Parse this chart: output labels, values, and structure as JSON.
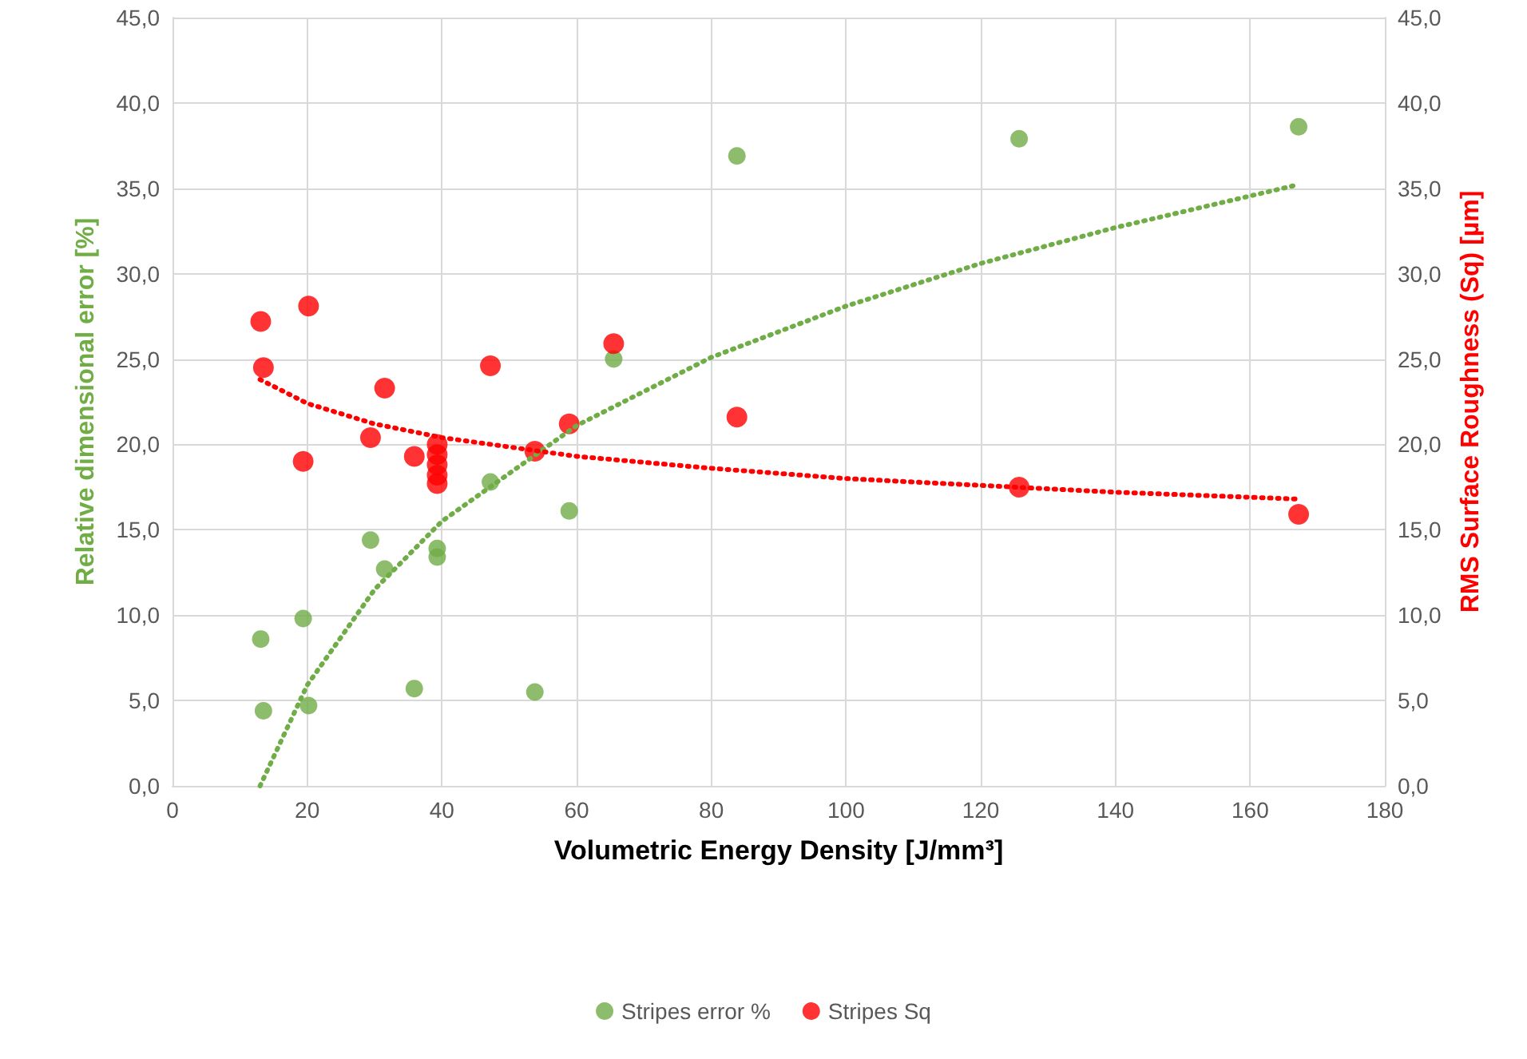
{
  "chart_data": {
    "type": "scatter",
    "xlabel": "Volumetric Energy Density [J/mm³]",
    "ylabel": "Relative dimensional error [%]",
    "y2label": "RMS Surface Roughness (Sq) [µm]",
    "xlim": [
      0,
      180
    ],
    "xticks": [
      0,
      20,
      40,
      60,
      80,
      100,
      120,
      140,
      160,
      180
    ],
    "ylim": [
      0,
      45
    ],
    "yticks": [
      {
        "value": 0,
        "label": "0,0"
      },
      {
        "value": 5,
        "label": "5,0"
      },
      {
        "value": 10,
        "label": "10,0"
      },
      {
        "value": 15,
        "label": "15,0"
      },
      {
        "value": 20,
        "label": "20,0"
      },
      {
        "value": 25,
        "label": "25,0"
      },
      {
        "value": 30,
        "label": "30,0"
      },
      {
        "value": 35,
        "label": "35,0"
      },
      {
        "value": 40,
        "label": "40,0"
      },
      {
        "value": 45,
        "label": "45,0"
      }
    ],
    "y2lim": [
      0,
      45
    ],
    "y2ticks": [
      {
        "value": 0,
        "label": "0,0"
      },
      {
        "value": 5,
        "label": "5,0"
      },
      {
        "value": 10,
        "label": "10,0"
      },
      {
        "value": 15,
        "label": "15,0"
      },
      {
        "value": 20,
        "label": "20,0"
      },
      {
        "value": 25,
        "label": "25,0"
      },
      {
        "value": 30,
        "label": "30,0"
      },
      {
        "value": 35,
        "label": "35,0"
      },
      {
        "value": 40,
        "label": "40,0"
      },
      {
        "value": 45,
        "label": "45,0"
      }
    ],
    "grid": true,
    "legend": "bottom",
    "marker": "circle",
    "series": [
      {
        "name": "Stripes error %",
        "color": "#70ad47",
        "x": [
          13.1,
          13.5,
          19.4,
          20.2,
          29.4,
          31.5,
          35.9,
          39.3,
          39.3,
          47.2,
          53.8,
          58.9,
          65.5,
          83.8,
          125.7,
          167.2
        ],
        "values": [
          8.6,
          4.4,
          9.8,
          4.7,
          14.4,
          12.7,
          5.7,
          13.9,
          13.4,
          17.8,
          5.5,
          16.1,
          25.0,
          36.9,
          37.9,
          38.6
        ]
      },
      {
        "name": "Stripes Sq",
        "color": "#ff0000",
        "axis": "y2",
        "x": [
          13.1,
          20.2,
          13.5,
          19.4,
          31.5,
          29.4,
          35.9,
          39.3,
          39.3,
          39.3,
          39.3,
          39.3,
          47.2,
          53.8,
          58.9,
          65.5,
          83.8,
          125.7,
          167.2
        ],
        "values": [
          27.2,
          28.1,
          24.5,
          19.0,
          23.3,
          20.4,
          19.3,
          20.0,
          19.4,
          18.8,
          18.2,
          17.7,
          24.6,
          19.6,
          21.2,
          25.9,
          21.6,
          17.5,
          15.9
        ]
      },
      {
        "type": "line",
        "color": "#70ad47",
        "marker": "none",
        "line_style": "dotted",
        "x": [
          13,
          20,
          30,
          40,
          60,
          80,
          100,
          120,
          140,
          167
        ],
        "values": [
          0,
          5.9,
          11.5,
          15.5,
          21.1,
          25.1,
          28.1,
          30.6,
          32.7,
          35.2
        ]
      },
      {
        "type": "line",
        "color": "#ff0000",
        "axis": "y2",
        "marker": "none",
        "line_style": "dotted",
        "x": [
          13,
          20,
          30,
          40,
          60,
          80,
          100,
          120,
          140,
          167
        ],
        "values": [
          23.8,
          22.4,
          21.2,
          20.4,
          19.3,
          18.6,
          18.0,
          17.6,
          17.2,
          16.8
        ]
      }
    ]
  }
}
